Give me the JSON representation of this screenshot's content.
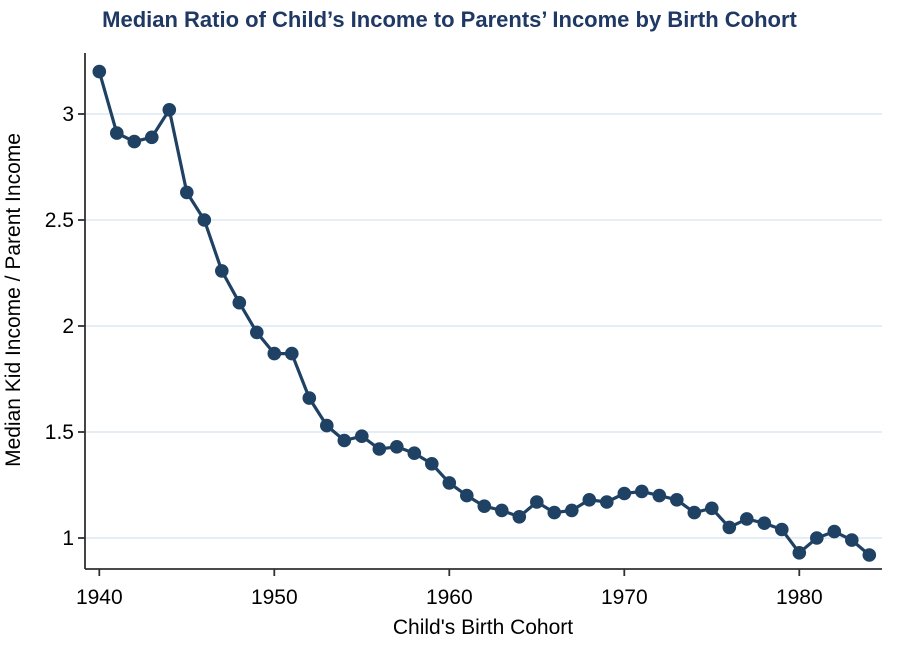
{
  "title": "Median Ratio of Child’s Income to Parents’ Income by Birth Cohort",
  "chart_data": {
    "type": "line",
    "title": "Median Ratio of Child’s Income to Parents’ Income by Birth Cohort",
    "xlabel": "Child's Birth Cohort",
    "ylabel": "Median Kid Income / Parent Income",
    "series_name": "median-kid-to-parent-income-ratio",
    "marker": "filled-circle",
    "legend": "none",
    "grid": "horizontal-only",
    "x": [
      1940,
      1941,
      1942,
      1943,
      1944,
      1945,
      1946,
      1947,
      1948,
      1949,
      1950,
      1951,
      1952,
      1953,
      1954,
      1955,
      1956,
      1957,
      1958,
      1959,
      1960,
      1961,
      1962,
      1963,
      1964,
      1965,
      1966,
      1967,
      1968,
      1969,
      1970,
      1971,
      1972,
      1973,
      1974,
      1975,
      1976,
      1977,
      1978,
      1979,
      1980,
      1981,
      1982,
      1983,
      1984
    ],
    "values": [
      3.2,
      2.91,
      2.87,
      2.89,
      3.02,
      2.63,
      2.5,
      2.26,
      2.11,
      1.97,
      1.87,
      1.87,
      1.66,
      1.53,
      1.46,
      1.48,
      1.42,
      1.43,
      1.4,
      1.35,
      1.26,
      1.2,
      1.15,
      1.13,
      1.1,
      1.17,
      1.12,
      1.13,
      1.18,
      1.17,
      1.21,
      1.22,
      1.2,
      1.18,
      1.12,
      1.14,
      1.05,
      1.09,
      1.07,
      1.04,
      0.93,
      1.0,
      1.03,
      0.99,
      0.92
    ],
    "xticks": [
      1940,
      1950,
      1960,
      1970,
      1980
    ],
    "yticks": [
      1,
      1.5,
      2,
      2.5,
      3
    ],
    "ytick_labels": [
      "1",
      "1.5",
      "2",
      "2.5",
      "3"
    ],
    "xtick_labels": [
      "1940",
      "1950",
      "1960",
      "1970",
      "1980"
    ],
    "xlim": [
      1939.2,
      1984.8
    ],
    "ylim": [
      0.84,
      3.29
    ],
    "colors": {
      "line": "#1e4164",
      "marker": "#1e4164",
      "grid": "#e5eef4",
      "axis": "#303030",
      "text": "#000000",
      "title": "#1f3864",
      "background": "#ffffff"
    }
  }
}
